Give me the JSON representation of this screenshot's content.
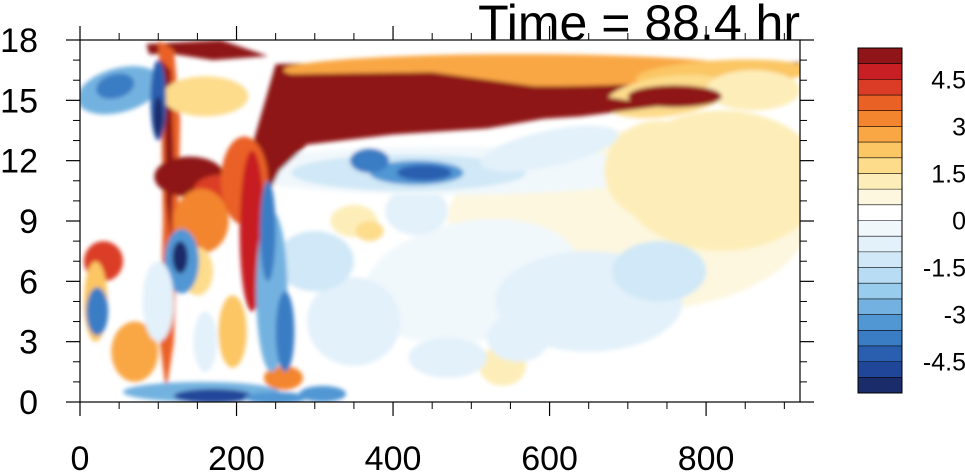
{
  "chart_data": {
    "type": "heatmap",
    "title": "Time = 88.4 hr",
    "xlabel": "",
    "ylabel": "",
    "x_ticks": [
      0,
      200,
      400,
      600,
      800
    ],
    "x_tick_labels": [
      "0",
      "200",
      "400",
      "600",
      "800"
    ],
    "y_ticks": [
      0,
      3,
      6,
      9,
      12,
      15,
      18
    ],
    "y_tick_labels": [
      "0",
      "3",
      "6",
      "9",
      "12",
      "15",
      "18"
    ],
    "xlim": [
      0,
      920
    ],
    "ylim": [
      0,
      18
    ],
    "colorbar": {
      "levels": [
        -5.5,
        -5,
        -4.5,
        -4,
        -3.5,
        -3,
        -2.5,
        -2,
        -1.5,
        -1,
        -0.5,
        0,
        0.5,
        1,
        1.5,
        2,
        2.5,
        3,
        3.5,
        4,
        4.5,
        5,
        5.5
      ],
      "colors": [
        "#1b2c6b",
        "#20469a",
        "#2a5fb0",
        "#3a7dc4",
        "#5197d4",
        "#73b2e0",
        "#98cdee",
        "#b7dcf3",
        "#d0e8f7",
        "#e3f1fa",
        "#f1f8fc",
        "#ffffff",
        "#fdf7df",
        "#fdeeb9",
        "#fddc8c",
        "#fbc663",
        "#f9a744",
        "#f3852e",
        "#ea6126",
        "#db3c25",
        "#c71f23",
        "#8f1519"
      ],
      "tick_values": [
        4.5,
        3,
        1.5,
        0,
        -1.5,
        -3,
        -4.5
      ],
      "tick_labels": [
        "4.5",
        "3",
        "1.5",
        "0",
        "-1.5",
        "-3",
        "-4.5"
      ]
    }
  }
}
